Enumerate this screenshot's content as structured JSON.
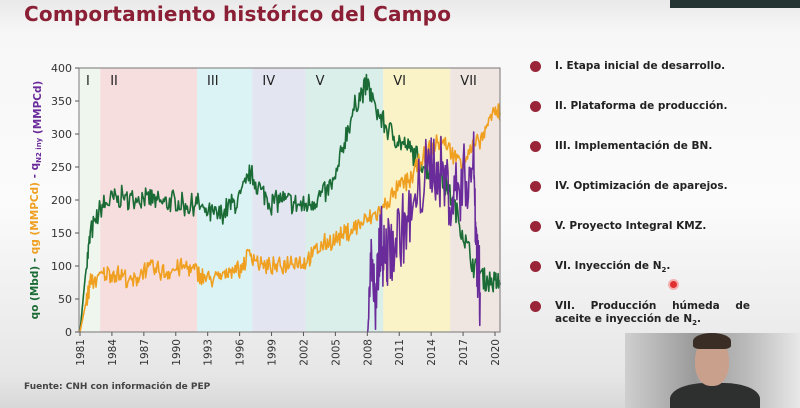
{
  "title": "Comportamiento histórico del Campo",
  "source": "Fuente: CNH con información de PEP",
  "legend": [
    {
      "label": "I. Etapa inicial de desarrollo."
    },
    {
      "label": "II. Plataforma de producción."
    },
    {
      "label": "III. Implementación de BN."
    },
    {
      "label": "IV. Optimización de aparejos."
    },
    {
      "label": "V. Proyecto Integral KMZ."
    },
    {
      "label": "VI. Inyección de N",
      "sub": "2",
      "end": "."
    },
    {
      "label": "VII. Producción húmeda de aceite e inyección de N",
      "sub": "2",
      "end": "."
    }
  ],
  "chart_data": {
    "type": "line",
    "title": "Comportamiento histórico del Campo",
    "ylabel_parts": [
      {
        "text": "qo (Mbd)",
        "color": "#1a6b35"
      },
      {
        "text": " - ",
        "color": "#1a6b35"
      },
      {
        "text": "qg (MMPCd)",
        "color": "#f0a020"
      },
      {
        "text": " - ",
        "color": "#6a2c9a"
      },
      {
        "text": "q",
        "color": "#6a2c9a"
      },
      {
        "text": "N2 iny",
        "color": "#6a2c9a",
        "sub": true
      },
      {
        "text": " (MMPCd)",
        "color": "#6a2c9a"
      }
    ],
    "ylim": [
      0,
      400
    ],
    "yticks": [
      0,
      50,
      100,
      150,
      200,
      250,
      300,
      350,
      400
    ],
    "xlim": [
      1981,
      2020.5
    ],
    "xticks": [
      1981,
      1984,
      1987,
      1990,
      1993,
      1996,
      1999,
      2002,
      2005,
      2008,
      2011,
      2014,
      2017,
      2020
    ],
    "phases": [
      {
        "label": "I",
        "start": 1981,
        "end": 1982.9,
        "color": "#eef6ee"
      },
      {
        "label": "II",
        "start": 1982.9,
        "end": 1992.0,
        "color": "#f7dede"
      },
      {
        "label": "III",
        "start": 1992.0,
        "end": 1997.2,
        "color": "#dcf3f5"
      },
      {
        "label": "IV",
        "start": 1997.2,
        "end": 2002.2,
        "color": "#e3e5f1"
      },
      {
        "label": "V",
        "start": 2002.2,
        "end": 2009.5,
        "color": "#daeeea"
      },
      {
        "label": "VI",
        "start": 2009.5,
        "end": 2015.8,
        "color": "#fbf3c8"
      },
      {
        "label": "VII",
        "start": 2015.8,
        "end": 2020.5,
        "color": "#efe6e2"
      }
    ],
    "series": [
      {
        "name": "qo (Mbd)",
        "color": "#1a6b35",
        "x": [
          1981,
          1981.5,
          1982,
          1983,
          1984,
          1985,
          1986,
          1987,
          1988,
          1989,
          1990,
          1991,
          1992,
          1993,
          1994,
          1995,
          1996,
          1997,
          1998,
          1999,
          2000,
          2001,
          2002,
          2003,
          2004,
          2005,
          2006,
          2007,
          2008,
          2009,
          2010,
          2011,
          2012,
          2013,
          2014,
          2015,
          2016,
          2017,
          2018,
          2019,
          2020,
          2020.5
        ],
        "y": [
          0,
          85,
          150,
          190,
          200,
          205,
          200,
          205,
          200,
          195,
          200,
          190,
          195,
          180,
          175,
          190,
          200,
          240,
          215,
          195,
          200,
          195,
          190,
          200,
          210,
          230,
          300,
          350,
          375,
          330,
          305,
          290,
          275,
          260,
          240,
          230,
          200,
          150,
          100,
          80,
          75,
          75
        ]
      },
      {
        "name": "qg (MMPCd)",
        "color": "#f0a020",
        "x": [
          1981,
          1981.5,
          1982,
          1983,
          1984,
          1985,
          1986,
          1987,
          1988,
          1989,
          1990,
          1991,
          1992,
          1993,
          1994,
          1995,
          1996,
          1997,
          1998,
          1999,
          2000,
          2001,
          2002,
          2003,
          2004,
          2005,
          2006,
          2007,
          2008,
          2009,
          2010,
          2011,
          2012,
          2013,
          2014,
          2015,
          2016,
          2017,
          2018,
          2019,
          2020,
          2020.5
        ],
        "y": [
          0,
          40,
          75,
          85,
          90,
          85,
          75,
          95,
          95,
          90,
          95,
          100,
          90,
          80,
          80,
          95,
          95,
          120,
          100,
          100,
          100,
          110,
          105,
          120,
          135,
          140,
          150,
          160,
          170,
          180,
          200,
          220,
          230,
          260,
          280,
          290,
          270,
          260,
          280,
          300,
          340,
          330
        ]
      },
      {
        "name": "qN2 iny (MMPCd)",
        "color": "#6a2c9a",
        "x": [
          2008,
          2008.4,
          2008.8,
          2009.2,
          2009.6,
          2010,
          2011,
          2012,
          2013,
          2014,
          2015,
          2016,
          2017,
          2018,
          2018.3,
          2018.6
        ],
        "y": [
          0,
          120,
          20,
          150,
          110,
          120,
          150,
          170,
          220,
          260,
          240,
          200,
          230,
          250,
          120,
          60
        ]
      }
    ]
  }
}
